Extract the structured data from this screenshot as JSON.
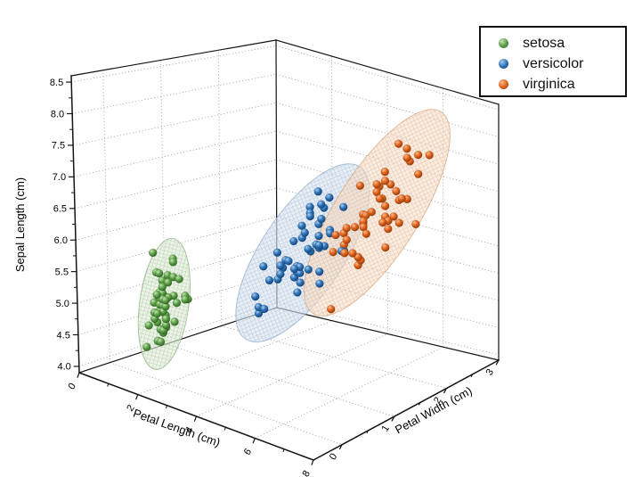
{
  "chart_data": {
    "type": "scatter",
    "subtype": "3d-scatter-with-confidence-ellipsoids",
    "ellipsoid_sigma": 3,
    "axes": {
      "x": {
        "title": "Petal Length (cm)",
        "range": [
          0,
          8
        ],
        "ticks": [
          0,
          2,
          4,
          6,
          8
        ],
        "minor_ticks": [
          1,
          3,
          5,
          7
        ]
      },
      "y": {
        "title": "Petal Width (cm)",
        "range": [
          0,
          3
        ],
        "ticks": [
          0,
          1,
          2,
          3
        ],
        "minor_ticks": [
          0.5,
          1.5,
          2.5
        ]
      },
      "z": {
        "title": "Sepal Length (cm)",
        "range": [
          4.0,
          8.5
        ],
        "ticks": [
          4.0,
          4.5,
          5.0,
          5.5,
          6.0,
          6.5,
          7.0,
          7.5,
          8.0,
          8.5
        ]
      }
    },
    "legend_position": "top-right",
    "grid": "dotted",
    "series": [
      {
        "name": "setosa",
        "marker": "#5ea04b",
        "marker_light": "#c6e6b2",
        "marker_dark": "#2d621f",
        "ellipse_fill": "#dfecd6",
        "ellipse_mesh": "#9fbd92",
        "ellipse_edge": "#8fae83",
        "points": [
          [
            1.4,
            0.2,
            5.1
          ],
          [
            1.4,
            0.2,
            4.9
          ],
          [
            1.3,
            0.2,
            4.7
          ],
          [
            1.5,
            0.2,
            4.6
          ],
          [
            1.4,
            0.2,
            5.0
          ],
          [
            1.7,
            0.4,
            5.4
          ],
          [
            1.4,
            0.3,
            4.6
          ],
          [
            1.5,
            0.2,
            5.0
          ],
          [
            1.4,
            0.2,
            4.4
          ],
          [
            1.5,
            0.1,
            4.9
          ],
          [
            1.5,
            0.2,
            5.4
          ],
          [
            1.6,
            0.2,
            4.8
          ],
          [
            1.4,
            0.1,
            4.8
          ],
          [
            1.1,
            0.1,
            4.3
          ],
          [
            1.2,
            0.2,
            5.8
          ],
          [
            1.5,
            0.4,
            5.7
          ],
          [
            1.3,
            0.4,
            5.4
          ],
          [
            1.4,
            0.3,
            5.1
          ],
          [
            1.7,
            0.3,
            5.7
          ],
          [
            1.5,
            0.3,
            5.1
          ],
          [
            1.7,
            0.2,
            5.4
          ],
          [
            1.5,
            0.4,
            5.1
          ],
          [
            1.0,
            0.2,
            4.6
          ],
          [
            1.7,
            0.5,
            5.1
          ],
          [
            1.9,
            0.2,
            4.8
          ],
          [
            1.6,
            0.2,
            5.0
          ],
          [
            1.6,
            0.4,
            5.0
          ],
          [
            1.5,
            0.2,
            5.2
          ],
          [
            1.4,
            0.2,
            5.2
          ],
          [
            1.6,
            0.2,
            4.7
          ],
          [
            1.6,
            0.2,
            4.8
          ],
          [
            1.5,
            0.4,
            5.4
          ],
          [
            1.5,
            0.1,
            5.2
          ],
          [
            1.4,
            0.2,
            5.5
          ],
          [
            1.5,
            0.2,
            4.9
          ],
          [
            1.2,
            0.2,
            5.0
          ],
          [
            1.3,
            0.2,
            5.5
          ],
          [
            1.4,
            0.1,
            4.9
          ],
          [
            1.3,
            0.2,
            4.4
          ],
          [
            1.5,
            0.2,
            5.1
          ],
          [
            1.3,
            0.3,
            5.0
          ],
          [
            1.3,
            0.3,
            4.5
          ],
          [
            1.3,
            0.2,
            4.4
          ],
          [
            1.6,
            0.6,
            5.0
          ],
          [
            1.9,
            0.4,
            5.1
          ],
          [
            1.4,
            0.3,
            4.8
          ],
          [
            1.6,
            0.2,
            5.1
          ],
          [
            1.4,
            0.2,
            4.6
          ],
          [
            1.5,
            0.2,
            5.3
          ],
          [
            1.4,
            0.2,
            5.0
          ]
        ]
      },
      {
        "name": "versicolor",
        "marker": "#2f74b8",
        "marker_light": "#aacdec",
        "marker_dark": "#123f75",
        "ellipse_fill": "#d7e2ef",
        "ellipse_mesh": "#9db4cf",
        "ellipse_edge": "#8ea9c8",
        "points": [
          [
            4.7,
            1.4,
            7.0
          ],
          [
            4.5,
            1.5,
            6.4
          ],
          [
            4.9,
            1.5,
            6.9
          ],
          [
            4.0,
            1.3,
            5.5
          ],
          [
            4.6,
            1.5,
            6.5
          ],
          [
            4.5,
            1.3,
            5.7
          ],
          [
            4.7,
            1.6,
            6.3
          ],
          [
            3.3,
            1.0,
            4.9
          ],
          [
            4.6,
            1.3,
            6.6
          ],
          [
            3.9,
            1.4,
            5.2
          ],
          [
            3.5,
            1.0,
            5.0
          ],
          [
            4.2,
            1.5,
            5.9
          ],
          [
            4.0,
            1.0,
            6.0
          ],
          [
            4.7,
            1.4,
            6.1
          ],
          [
            3.6,
            1.3,
            5.6
          ],
          [
            4.4,
            1.4,
            6.7
          ],
          [
            4.5,
            1.5,
            5.6
          ],
          [
            4.1,
            1.0,
            5.8
          ],
          [
            4.5,
            1.5,
            6.2
          ],
          [
            3.9,
            1.1,
            5.6
          ],
          [
            4.8,
            1.8,
            5.9
          ],
          [
            4.0,
            1.3,
            6.1
          ],
          [
            4.9,
            1.5,
            6.3
          ],
          [
            4.7,
            1.2,
            6.1
          ],
          [
            4.3,
            1.3,
            6.4
          ],
          [
            4.4,
            1.4,
            6.6
          ],
          [
            4.8,
            1.4,
            6.8
          ],
          [
            5.0,
            1.7,
            6.7
          ],
          [
            4.5,
            1.5,
            6.0
          ],
          [
            3.5,
            1.0,
            5.7
          ],
          [
            3.8,
            1.1,
            5.5
          ],
          [
            3.7,
            1.0,
            5.5
          ],
          [
            3.9,
            1.2,
            5.8
          ],
          [
            5.1,
            1.6,
            6.0
          ],
          [
            4.5,
            1.5,
            5.4
          ],
          [
            4.5,
            1.6,
            6.0
          ],
          [
            4.7,
            1.5,
            6.7
          ],
          [
            4.4,
            1.3,
            6.3
          ],
          [
            4.1,
            1.3,
            5.6
          ],
          [
            4.0,
            1.3,
            5.5
          ],
          [
            4.4,
            1.2,
            5.5
          ],
          [
            4.6,
            1.4,
            6.1
          ],
          [
            4.0,
            1.2,
            5.8
          ],
          [
            3.3,
            1.0,
            5.0
          ],
          [
            4.2,
            1.3,
            5.6
          ],
          [
            4.2,
            1.2,
            5.7
          ],
          [
            4.2,
            1.3,
            5.7
          ],
          [
            4.3,
            1.3,
            6.2
          ],
          [
            3.0,
            1.1,
            5.1
          ],
          [
            4.1,
            1.3,
            5.7
          ]
        ]
      },
      {
        "name": "virginica",
        "marker": "#e2641e",
        "marker_light": "#f6bd92",
        "marker_dark": "#8c3808",
        "ellipse_fill": "#f7e0cd",
        "ellipse_mesh": "#dcab85",
        "ellipse_edge": "#d8a274",
        "points": [
          [
            6.0,
            2.5,
            6.3
          ],
          [
            5.1,
            1.9,
            5.8
          ],
          [
            5.9,
            2.1,
            7.1
          ],
          [
            5.6,
            1.8,
            6.3
          ],
          [
            5.8,
            2.2,
            6.5
          ],
          [
            6.6,
            2.1,
            7.6
          ],
          [
            4.5,
            1.7,
            4.9
          ],
          [
            6.3,
            1.8,
            7.3
          ],
          [
            5.8,
            1.8,
            6.7
          ],
          [
            6.1,
            2.5,
            7.2
          ],
          [
            5.1,
            2.0,
            6.5
          ],
          [
            5.3,
            1.9,
            6.4
          ],
          [
            5.5,
            2.1,
            6.8
          ],
          [
            5.0,
            2.0,
            5.7
          ],
          [
            5.1,
            2.4,
            5.8
          ],
          [
            5.3,
            2.3,
            6.4
          ],
          [
            5.5,
            1.8,
            6.5
          ],
          [
            6.7,
            2.2,
            7.7
          ],
          [
            6.9,
            2.3,
            7.7
          ],
          [
            5.0,
            1.5,
            6.0
          ],
          [
            5.7,
            2.3,
            6.9
          ],
          [
            4.9,
            2.0,
            5.6
          ],
          [
            6.7,
            2.0,
            7.7
          ],
          [
            4.9,
            1.8,
            6.3
          ],
          [
            5.7,
            2.1,
            6.7
          ],
          [
            6.0,
            1.8,
            7.2
          ],
          [
            4.8,
            1.8,
            6.2
          ],
          [
            4.9,
            1.8,
            6.1
          ],
          [
            5.6,
            2.1,
            6.4
          ],
          [
            5.8,
            1.6,
            7.2
          ],
          [
            6.1,
            1.9,
            7.4
          ],
          [
            6.4,
            2.0,
            7.9
          ],
          [
            5.6,
            2.2,
            6.4
          ],
          [
            5.1,
            1.5,
            6.3
          ],
          [
            5.6,
            1.4,
            6.1
          ],
          [
            6.1,
            2.3,
            7.7
          ],
          [
            5.6,
            2.4,
            6.3
          ],
          [
            5.5,
            1.8,
            6.4
          ],
          [
            4.8,
            1.8,
            6.0
          ],
          [
            5.4,
            2.1,
            6.9
          ],
          [
            5.6,
            2.4,
            6.7
          ],
          [
            5.1,
            2.3,
            6.9
          ],
          [
            5.1,
            1.9,
            5.8
          ],
          [
            5.9,
            2.3,
            6.8
          ],
          [
            5.7,
            2.5,
            6.7
          ],
          [
            5.2,
            2.3,
            6.7
          ],
          [
            5.0,
            1.9,
            6.3
          ],
          [
            5.2,
            2.0,
            6.5
          ],
          [
            5.4,
            2.3,
            6.2
          ],
          [
            5.1,
            1.8,
            5.9
          ]
        ]
      }
    ]
  }
}
